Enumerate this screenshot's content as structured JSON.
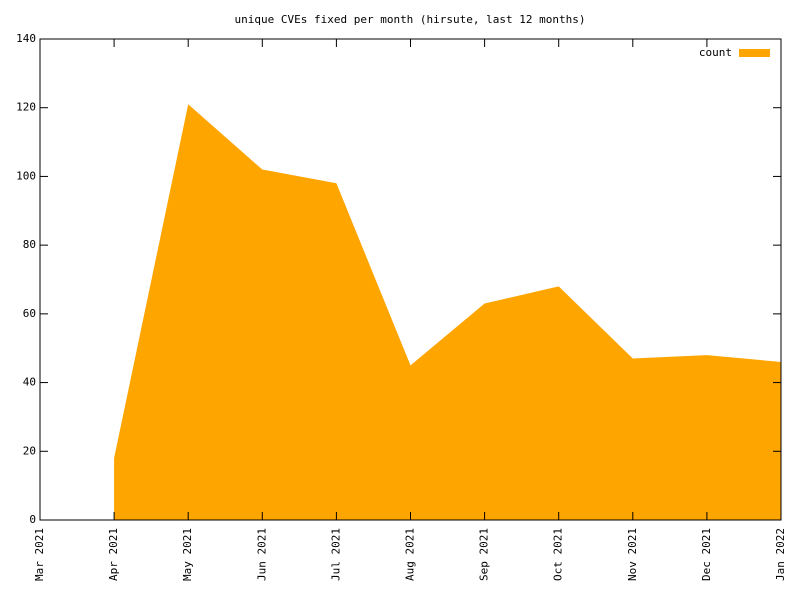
{
  "chart_data": {
    "type": "area",
    "title": "unique CVEs fixed per month (hirsute, last 12 months)",
    "categories": [
      "Mar 2021",
      "Apr 2021",
      "May 2021",
      "Jun 2021",
      "Jul 2021",
      "Aug 2021",
      "Sep 2021",
      "Oct 2021",
      "Nov 2021",
      "Dec 2021",
      "Jan 2022"
    ],
    "series": [
      {
        "name": "count",
        "color": "#ffa500",
        "values": [
          null,
          18,
          121,
          102,
          98,
          45,
          63,
          68,
          47,
          48,
          46
        ]
      }
    ],
    "ylim": [
      0,
      140
    ],
    "yticks": [
      0,
      20,
      40,
      60,
      80,
      100,
      120,
      140
    ],
    "grid": false,
    "legend": "top-right"
  }
}
